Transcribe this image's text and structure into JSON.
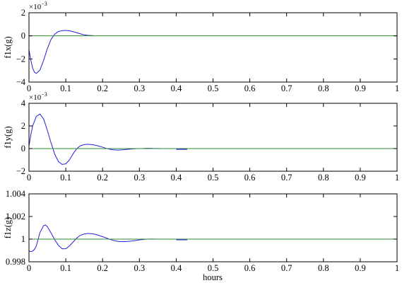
{
  "colors": {
    "signal": "#1f1fe0",
    "reference": "#2e8b2e",
    "axis": "#000000",
    "background": "#ffffff"
  },
  "xlabel": "hours",
  "chart_data": [
    {
      "type": "line",
      "ylabel": "f1x(g)",
      "exponent_base": "×10",
      "exponent_power": "−3",
      "xlim": [
        0,
        1
      ],
      "ylim": [
        -4,
        2
      ],
      "xticks": [
        0,
        0.1,
        0.2,
        0.3,
        0.4,
        0.5,
        0.6,
        0.7,
        0.8,
        0.9,
        1
      ],
      "xtick_labels": [
        "0",
        "0.1",
        "0.2",
        "0.3",
        "0.4",
        "0.5",
        "0.6",
        "0.7",
        "0.8",
        "0.9",
        "1"
      ],
      "yticks": [
        -4,
        -2,
        0,
        2
      ],
      "ytick_labels": [
        "−4",
        "−2",
        "0",
        "2"
      ],
      "grid": false,
      "series": [
        {
          "role": "signal",
          "x": [
            0,
            0.005,
            0.01,
            0.015,
            0.02,
            0.03,
            0.04,
            0.05,
            0.06,
            0.07,
            0.08,
            0.09,
            0.1,
            0.11,
            0.12,
            0.13,
            0.14,
            0.15,
            0.16,
            0.175
          ],
          "values": [
            -1.2,
            -2.1,
            -2.8,
            -3.15,
            -3.25,
            -2.95,
            -2.1,
            -1.1,
            -0.3,
            0.15,
            0.38,
            0.45,
            0.47,
            0.44,
            0.36,
            0.27,
            0.17,
            0.09,
            0.04,
            0.02
          ]
        },
        {
          "role": "reference",
          "x": [
            0,
            1
          ],
          "values": [
            0,
            0
          ]
        }
      ]
    },
    {
      "type": "line",
      "ylabel": "f1y(g)",
      "exponent_base": "×10",
      "exponent_power": "−3",
      "xlim": [
        0,
        1
      ],
      "ylim": [
        -2,
        4
      ],
      "xticks": [
        0,
        0.1,
        0.2,
        0.3,
        0.4,
        0.5,
        0.6,
        0.7,
        0.8,
        0.9,
        1
      ],
      "xtick_labels": [
        "0",
        "0.1",
        "0.2",
        "0.3",
        "0.4",
        "0.5",
        "0.6",
        "0.7",
        "0.8",
        "0.9",
        "1"
      ],
      "yticks": [
        -2,
        0,
        2,
        4
      ],
      "ytick_labels": [
        "−2",
        "0",
        "2",
        "4"
      ],
      "grid": false,
      "series": [
        {
          "role": "signal",
          "x": [
            0,
            0.005,
            0.01,
            0.02,
            0.03,
            0.04,
            0.05,
            0.06,
            0.07,
            0.08,
            0.09,
            0.1,
            0.11,
            0.12,
            0.13,
            0.14,
            0.15,
            0.16,
            0.17,
            0.18,
            0.19,
            0.2,
            0.21,
            0.22,
            0.23,
            0.24,
            0.25,
            0.26,
            0.27,
            0.28,
            0.29,
            0.3,
            0.31,
            0.32,
            0.33,
            0.34,
            0.35,
            0.36
          ],
          "values": [
            0.2,
            1.2,
            2.0,
            2.85,
            3.05,
            2.6,
            1.6,
            0.5,
            -0.5,
            -1.15,
            -1.4,
            -1.35,
            -1.0,
            -0.45,
            0.0,
            0.25,
            0.35,
            0.38,
            0.35,
            0.3,
            0.22,
            0.12,
            0.02,
            -0.06,
            -0.11,
            -0.13,
            -0.12,
            -0.09,
            -0.06,
            -0.03,
            -0.01,
            0.0,
            0.01,
            0.02,
            0.02,
            0.01,
            0.01,
            0.0
          ]
        },
        {
          "role": "signal",
          "x": [
            0.4,
            0.43
          ],
          "values": [
            -0.06,
            -0.06
          ]
        },
        {
          "role": "reference",
          "x": [
            0,
            1
          ],
          "values": [
            0,
            0
          ]
        }
      ]
    },
    {
      "type": "line",
      "ylabel": "f1z(g)",
      "xlim": [
        0,
        1
      ],
      "ylim": [
        0.998,
        1.004
      ],
      "xticks": [
        0,
        0.1,
        0.2,
        0.3,
        0.4,
        0.5,
        0.6,
        0.7,
        0.8,
        0.9,
        1
      ],
      "xtick_labels": [
        "0",
        "0.1",
        "0.2",
        "0.3",
        "0.4",
        "0.5",
        "0.6",
        "0.7",
        "0.8",
        "0.9",
        "1"
      ],
      "yticks": [
        0.998,
        1,
        1.002,
        1.004
      ],
      "ytick_labels": [
        "0.998",
        "1",
        "1.002",
        "1.004"
      ],
      "grid": false,
      "series": [
        {
          "role": "signal",
          "x": [
            0,
            0.005,
            0.01,
            0.015,
            0.02,
            0.03,
            0.04,
            0.045,
            0.05,
            0.06,
            0.07,
            0.08,
            0.09,
            0.1,
            0.11,
            0.12,
            0.13,
            0.14,
            0.15,
            0.16,
            0.17,
            0.18,
            0.19,
            0.2,
            0.21,
            0.22,
            0.23,
            0.24,
            0.25,
            0.26,
            0.27,
            0.28,
            0.29,
            0.3,
            0.31,
            0.32,
            0.33,
            0.34,
            0.35,
            0.36
          ],
          "values": [
            0.99895,
            0.9989,
            0.99895,
            0.9991,
            0.9994,
            1.0006,
            1.0012,
            1.00125,
            1.0011,
            1.00055,
            0.99995,
            0.99945,
            0.99915,
            0.99915,
            0.9994,
            0.99975,
            1.0001,
            1.00035,
            1.00045,
            1.0005,
            1.00048,
            1.00043,
            1.00033,
            1.00022,
            1.0001,
            0.99998,
            0.99988,
            0.99981,
            0.99978,
            0.99978,
            0.9998,
            0.99984,
            0.99988,
            0.99993,
            0.99997,
            1.0,
            1.00001,
            1.00001,
            1.0,
            1.0
          ]
        },
        {
          "role": "signal",
          "x": [
            0.4,
            0.43
          ],
          "values": [
            0.99995,
            0.99995
          ]
        },
        {
          "role": "reference",
          "x": [
            0,
            1
          ],
          "values": [
            1,
            1
          ]
        }
      ]
    }
  ]
}
